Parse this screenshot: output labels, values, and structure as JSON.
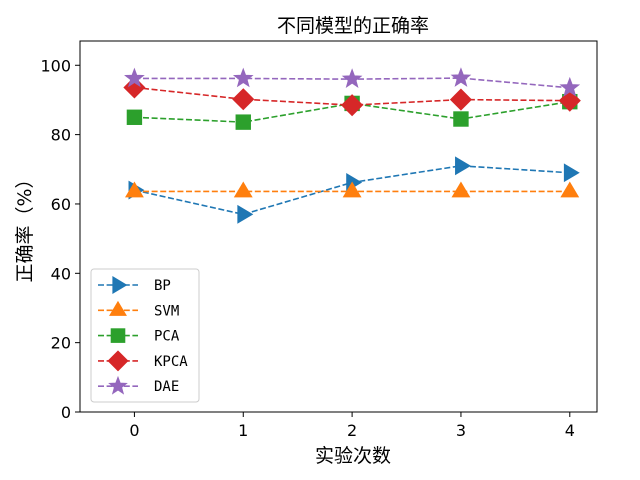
{
  "chart_data": {
    "type": "line",
    "title": "不同模型的正确率",
    "xlabel": "实验次数",
    "ylabel": "正确率（%）",
    "x": [
      0,
      1,
      2,
      3,
      4
    ],
    "xlim": [
      -0.5,
      4.25
    ],
    "ylim": [
      0,
      107
    ],
    "yticks": [
      0,
      20,
      40,
      60,
      80,
      100
    ],
    "legend_position": "lower-left",
    "grid": false,
    "series": [
      {
        "name": "BP",
        "values": [
          64.0,
          57.0,
          66.2,
          71.0,
          69.0
        ],
        "color": "#1f77b4",
        "marker": "triangle-right"
      },
      {
        "name": "SVM",
        "values": [
          63.6,
          63.6,
          63.6,
          63.6,
          63.6
        ],
        "color": "#ff7f0e",
        "marker": "triangle-up"
      },
      {
        "name": "PCA",
        "values": [
          85.0,
          83.6,
          89.0,
          84.5,
          89.5
        ],
        "color": "#2ca02c",
        "marker": "square"
      },
      {
        "name": "KPCA",
        "values": [
          93.6,
          90.2,
          88.5,
          90.1,
          89.8
        ],
        "color": "#d62728",
        "marker": "diamond"
      },
      {
        "name": "DAE",
        "values": [
          96.2,
          96.2,
          96.0,
          96.3,
          93.5
        ],
        "color": "#9467bd",
        "marker": "star"
      }
    ]
  }
}
